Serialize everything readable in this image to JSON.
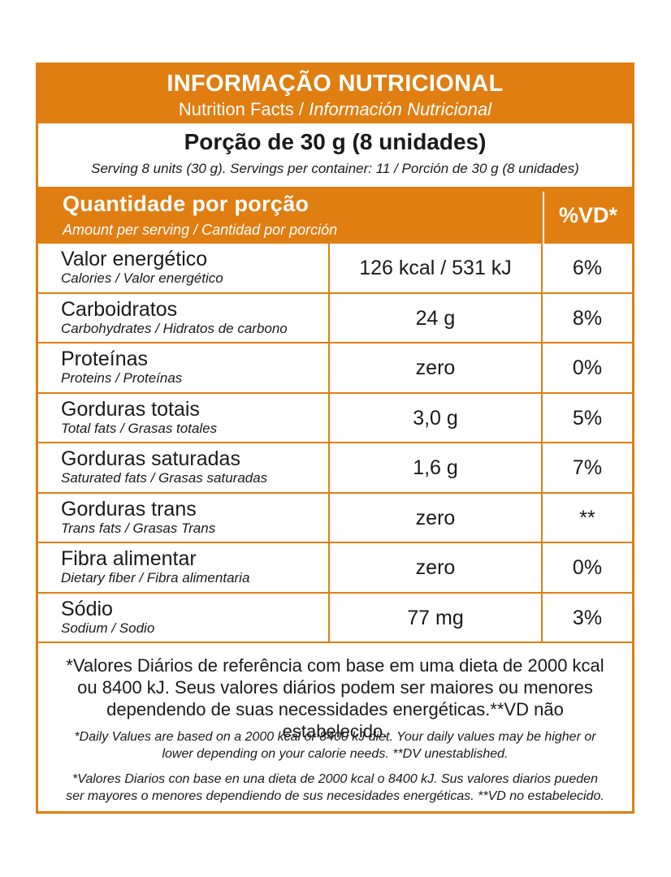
{
  "title": {
    "main": "INFORMAÇÃO NUTRICIONAL",
    "sub_plain": "Nutrition Facts / ",
    "sub_italic": "Información Nutricional"
  },
  "serving": {
    "main": "Porção de 30 g (8 unidades)",
    "sub": "Serving 8 units (30 g). Servings per container: 11  /  Porción de 30 g (8 unidades)"
  },
  "header": {
    "amount_main": "Quantidade por porção",
    "amount_sub": "Amount per serving  / Cantidad por porción",
    "vd": "%VD*"
  },
  "rows": [
    {
      "name": "Valor energético",
      "sub": "Calories / Valor energético",
      "amount": "126 kcal / 531 kJ",
      "vd": "6%"
    },
    {
      "name": "Carboidratos",
      "sub": "Carbohydrates / Hidratos de carbono",
      "amount": "24 g",
      "vd": "8%"
    },
    {
      "name": "Proteínas",
      "sub": "Proteins / Proteínas",
      "amount": "zero",
      "vd": "0%"
    },
    {
      "name": "Gorduras totais",
      "sub": "Total fats / Grasas totales",
      "amount": "3,0 g",
      "vd": "5%"
    },
    {
      "name": "Gorduras saturadas",
      "sub": "Saturated fats / Grasas saturadas",
      "amount": "1,6 g",
      "vd": "7%"
    },
    {
      "name": "Gorduras trans",
      "sub": "Trans fats / Grasas Trans",
      "amount": "zero",
      "vd": "**"
    },
    {
      "name": "Fibra alimentar",
      "sub": "Dietary fiber / Fibra alimentaria",
      "amount": "zero",
      "vd": "0%"
    },
    {
      "name": "Sódio",
      "sub": "Sodium / Sodio",
      "amount": "77 mg",
      "vd": "3%"
    }
  ],
  "footer": {
    "pt": "*Valores Diários de referência com base em uma dieta de 2000 kcal ou 8400 kJ. Seus valores diários podem ser maiores ou menores dependendo de suas necessidades energéticas.**VD não estabelecido.",
    "en": "*Daily Values are based on a 2000 kcal or 8400 kJ diet. Your daily values may be higher or lower depending on your calorie needs. **DV  unestablished.",
    "es": "*Valores Diarios con base en una dieta de 2000 kcal o 8400 kJ. Sus valores diarios pueden ser mayores o menores dependiendo de sus necesidades energéticas. **VD no estabelecido."
  },
  "colors": {
    "accent": "#e07e12",
    "text": "#1a1a1a",
    "background": "#ffffff"
  }
}
